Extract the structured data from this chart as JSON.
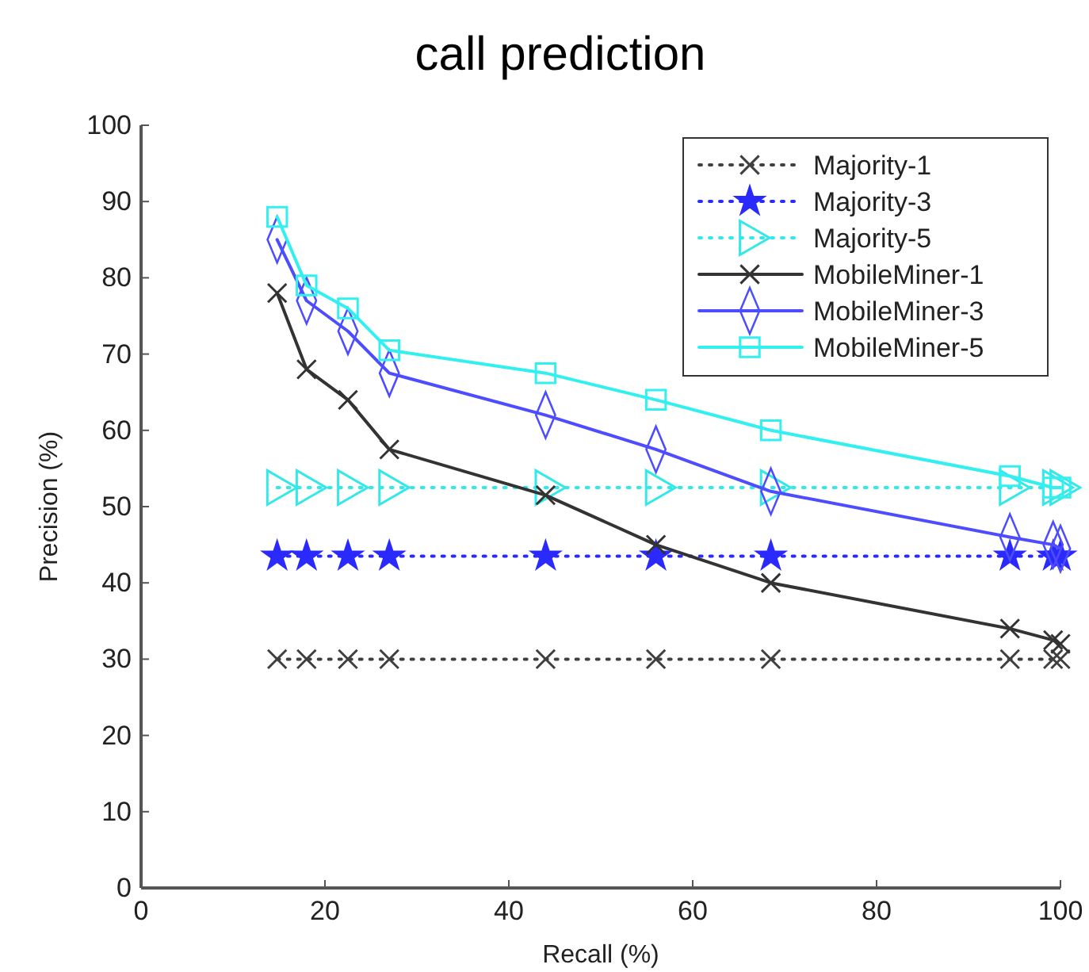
{
  "chart_data": {
    "type": "line",
    "title": "call prediction",
    "xlabel": "Recall (%)",
    "ylabel": "Precision (%)",
    "x": [
      14.8,
      18,
      22.5,
      27,
      44,
      56,
      68.5,
      94.5,
      99.2,
      100
    ],
    "xlim": [
      0,
      100
    ],
    "xticks": [
      0,
      20,
      40,
      60,
      80,
      100
    ],
    "ylim": [
      0,
      100
    ],
    "yticks": [
      0,
      10,
      20,
      30,
      40,
      50,
      60,
      70,
      80,
      90,
      100
    ],
    "grid": false,
    "legend": "top right",
    "series": [
      {
        "name": "Majority-1",
        "color": "#404040",
        "marker": "cross",
        "line_style": "dotted",
        "values": [
          30,
          30,
          30,
          30,
          30,
          30,
          30,
          30,
          30,
          30
        ]
      },
      {
        "name": "Majority-3",
        "color": "#2a2aff",
        "marker": "star",
        "line_style": "dotted",
        "values": [
          43.5,
          43.5,
          43.5,
          43.5,
          43.5,
          43.5,
          43.5,
          43.5,
          43.5,
          43.5
        ]
      },
      {
        "name": "Majority-5",
        "color": "#33e8e8",
        "marker": "triangle",
        "line_style": "dotted",
        "values": [
          52.5,
          52.5,
          52.5,
          52.5,
          52.5,
          52.5,
          52.5,
          52.5,
          52.5,
          52.5
        ]
      },
      {
        "name": "MobileMiner-1",
        "color": "#333333",
        "marker": "cross",
        "line_style": "solid",
        "values": [
          78,
          68,
          64,
          57.5,
          51.5,
          45,
          40,
          34,
          32.5,
          32
        ]
      },
      {
        "name": "MobileMiner-3",
        "color": "#4d4dff",
        "marker": "diamond",
        "line_style": "solid",
        "values": [
          85,
          77,
          73,
          67.5,
          62,
          57.5,
          52,
          46,
          45,
          44.5
        ]
      },
      {
        "name": "MobileMiner-5",
        "color": "#33f0f0",
        "marker": "square",
        "line_style": "solid",
        "values": [
          88,
          79,
          76,
          70.5,
          67.5,
          64,
          60,
          54,
          52.5,
          52.5
        ]
      }
    ]
  }
}
